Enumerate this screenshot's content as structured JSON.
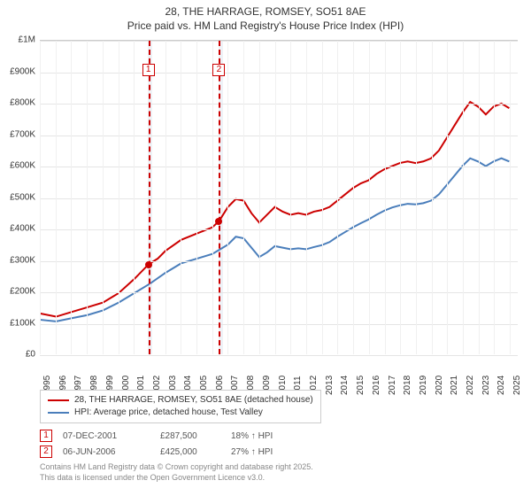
{
  "title": {
    "line1": "28, THE HARRAGE, ROMSEY, SO51 8AE",
    "line2": "Price paid vs. HM Land Registry's House Price Index (HPI)"
  },
  "chart": {
    "type": "line",
    "background_color": "#ffffff",
    "grid_color": "#e5e5e5",
    "xlim": [
      1995,
      2025.5
    ],
    "ylim": [
      0,
      1000000
    ],
    "y_ticks": [
      0,
      100000,
      200000,
      300000,
      400000,
      500000,
      600000,
      700000,
      800000,
      900000,
      1000000
    ],
    "y_tick_labels": [
      "£0",
      "£100K",
      "£200K",
      "£300K",
      "£400K",
      "£500K",
      "£600K",
      "£700K",
      "£800K",
      "£900K",
      "£1M"
    ],
    "x_ticks": [
      1995,
      1996,
      1997,
      1998,
      1999,
      2000,
      2001,
      2002,
      2003,
      2004,
      2005,
      2006,
      2007,
      2008,
      2009,
      2010,
      2011,
      2012,
      2013,
      2014,
      2015,
      2016,
      2017,
      2018,
      2019,
      2020,
      2021,
      2022,
      2023,
      2024,
      2025
    ],
    "shade_bands": [
      {
        "from": 2001.9,
        "to": 2002.2,
        "color": "#eef2f7"
      },
      {
        "from": 2006.4,
        "to": 2006.7,
        "color": "#eef2f7"
      }
    ],
    "marker_lines": [
      {
        "x": 2001.93,
        "color": "#cc0000",
        "dash": true
      },
      {
        "x": 2006.43,
        "color": "#cc0000",
        "dash": true
      }
    ],
    "series": [
      {
        "name": "red",
        "color": "#cc0000",
        "width": 2,
        "points": [
          [
            1995,
            130000
          ],
          [
            1996,
            120000
          ],
          [
            1997,
            135000
          ],
          [
            1998,
            150000
          ],
          [
            1999,
            165000
          ],
          [
            2000,
            195000
          ],
          [
            2001,
            240000
          ],
          [
            2001.93,
            287500
          ],
          [
            2002.5,
            305000
          ],
          [
            2003,
            330000
          ],
          [
            2004,
            365000
          ],
          [
            2005,
            385000
          ],
          [
            2006,
            405000
          ],
          [
            2006.43,
            425000
          ],
          [
            2007,
            470000
          ],
          [
            2007.5,
            495000
          ],
          [
            2008,
            490000
          ],
          [
            2008.5,
            450000
          ],
          [
            2009,
            420000
          ],
          [
            2009.5,
            445000
          ],
          [
            2010,
            470000
          ],
          [
            2010.5,
            455000
          ],
          [
            2011,
            445000
          ],
          [
            2011.5,
            450000
          ],
          [
            2012,
            445000
          ],
          [
            2012.5,
            455000
          ],
          [
            2013,
            460000
          ],
          [
            2013.5,
            470000
          ],
          [
            2014,
            490000
          ],
          [
            2014.5,
            510000
          ],
          [
            2015,
            530000
          ],
          [
            2015.5,
            545000
          ],
          [
            2016,
            555000
          ],
          [
            2016.5,
            575000
          ],
          [
            2017,
            590000
          ],
          [
            2017.5,
            600000
          ],
          [
            2018,
            610000
          ],
          [
            2018.5,
            615000
          ],
          [
            2019,
            610000
          ],
          [
            2019.5,
            615000
          ],
          [
            2020,
            625000
          ],
          [
            2020.5,
            650000
          ],
          [
            2021,
            690000
          ],
          [
            2021.5,
            730000
          ],
          [
            2022,
            770000
          ],
          [
            2022.5,
            805000
          ],
          [
            2023,
            790000
          ],
          [
            2023.5,
            765000
          ],
          [
            2024,
            790000
          ],
          [
            2024.5,
            800000
          ],
          [
            2025,
            785000
          ]
        ]
      },
      {
        "name": "blue",
        "color": "#4a7ebb",
        "width": 2,
        "points": [
          [
            1995,
            110000
          ],
          [
            1996,
            105000
          ],
          [
            1997,
            115000
          ],
          [
            1998,
            125000
          ],
          [
            1999,
            140000
          ],
          [
            2000,
            165000
          ],
          [
            2001,
            195000
          ],
          [
            2002,
            225000
          ],
          [
            2003,
            260000
          ],
          [
            2004,
            290000
          ],
          [
            2005,
            305000
          ],
          [
            2006,
            320000
          ],
          [
            2007,
            350000
          ],
          [
            2007.5,
            375000
          ],
          [
            2008,
            370000
          ],
          [
            2008.5,
            340000
          ],
          [
            2009,
            310000
          ],
          [
            2009.5,
            325000
          ],
          [
            2010,
            345000
          ],
          [
            2010.5,
            340000
          ],
          [
            2011,
            335000
          ],
          [
            2011.5,
            338000
          ],
          [
            2012,
            335000
          ],
          [
            2012.5,
            342000
          ],
          [
            2013,
            348000
          ],
          [
            2013.5,
            358000
          ],
          [
            2014,
            375000
          ],
          [
            2014.5,
            390000
          ],
          [
            2015,
            405000
          ],
          [
            2015.5,
            418000
          ],
          [
            2016,
            430000
          ],
          [
            2016.5,
            445000
          ],
          [
            2017,
            458000
          ],
          [
            2017.5,
            468000
          ],
          [
            2018,
            475000
          ],
          [
            2018.5,
            480000
          ],
          [
            2019,
            478000
          ],
          [
            2019.5,
            482000
          ],
          [
            2020,
            490000
          ],
          [
            2020.5,
            510000
          ],
          [
            2021,
            540000
          ],
          [
            2021.5,
            570000
          ],
          [
            2022,
            600000
          ],
          [
            2022.5,
            625000
          ],
          [
            2023,
            615000
          ],
          [
            2023.5,
            600000
          ],
          [
            2024,
            615000
          ],
          [
            2024.5,
            625000
          ],
          [
            2025,
            615000
          ]
        ]
      }
    ],
    "data_points": [
      {
        "x": 2001.93,
        "y": 287500,
        "color": "#cc0000"
      },
      {
        "x": 2006.43,
        "y": 425000,
        "color": "#cc0000"
      }
    ],
    "marker_labels": [
      {
        "num": "1",
        "x": 2001.93
      },
      {
        "num": "2",
        "x": 2006.43
      }
    ]
  },
  "legend": {
    "items": [
      {
        "color": "#cc0000",
        "label": "28, THE HARRAGE, ROMSEY, SO51 8AE (detached house)"
      },
      {
        "color": "#4a7ebb",
        "label": "HPI: Average price, detached house, Test Valley"
      }
    ]
  },
  "events": [
    {
      "num": "1",
      "date": "07-DEC-2001",
      "price": "£287,500",
      "pct": "18% ↑ HPI"
    },
    {
      "num": "2",
      "date": "06-JUN-2006",
      "price": "£425,000",
      "pct": "27% ↑ HPI"
    }
  ],
  "footer": {
    "line1": "Contains HM Land Registry data © Crown copyright and database right 2025.",
    "line2": "This data is licensed under the Open Government Licence v3.0."
  }
}
